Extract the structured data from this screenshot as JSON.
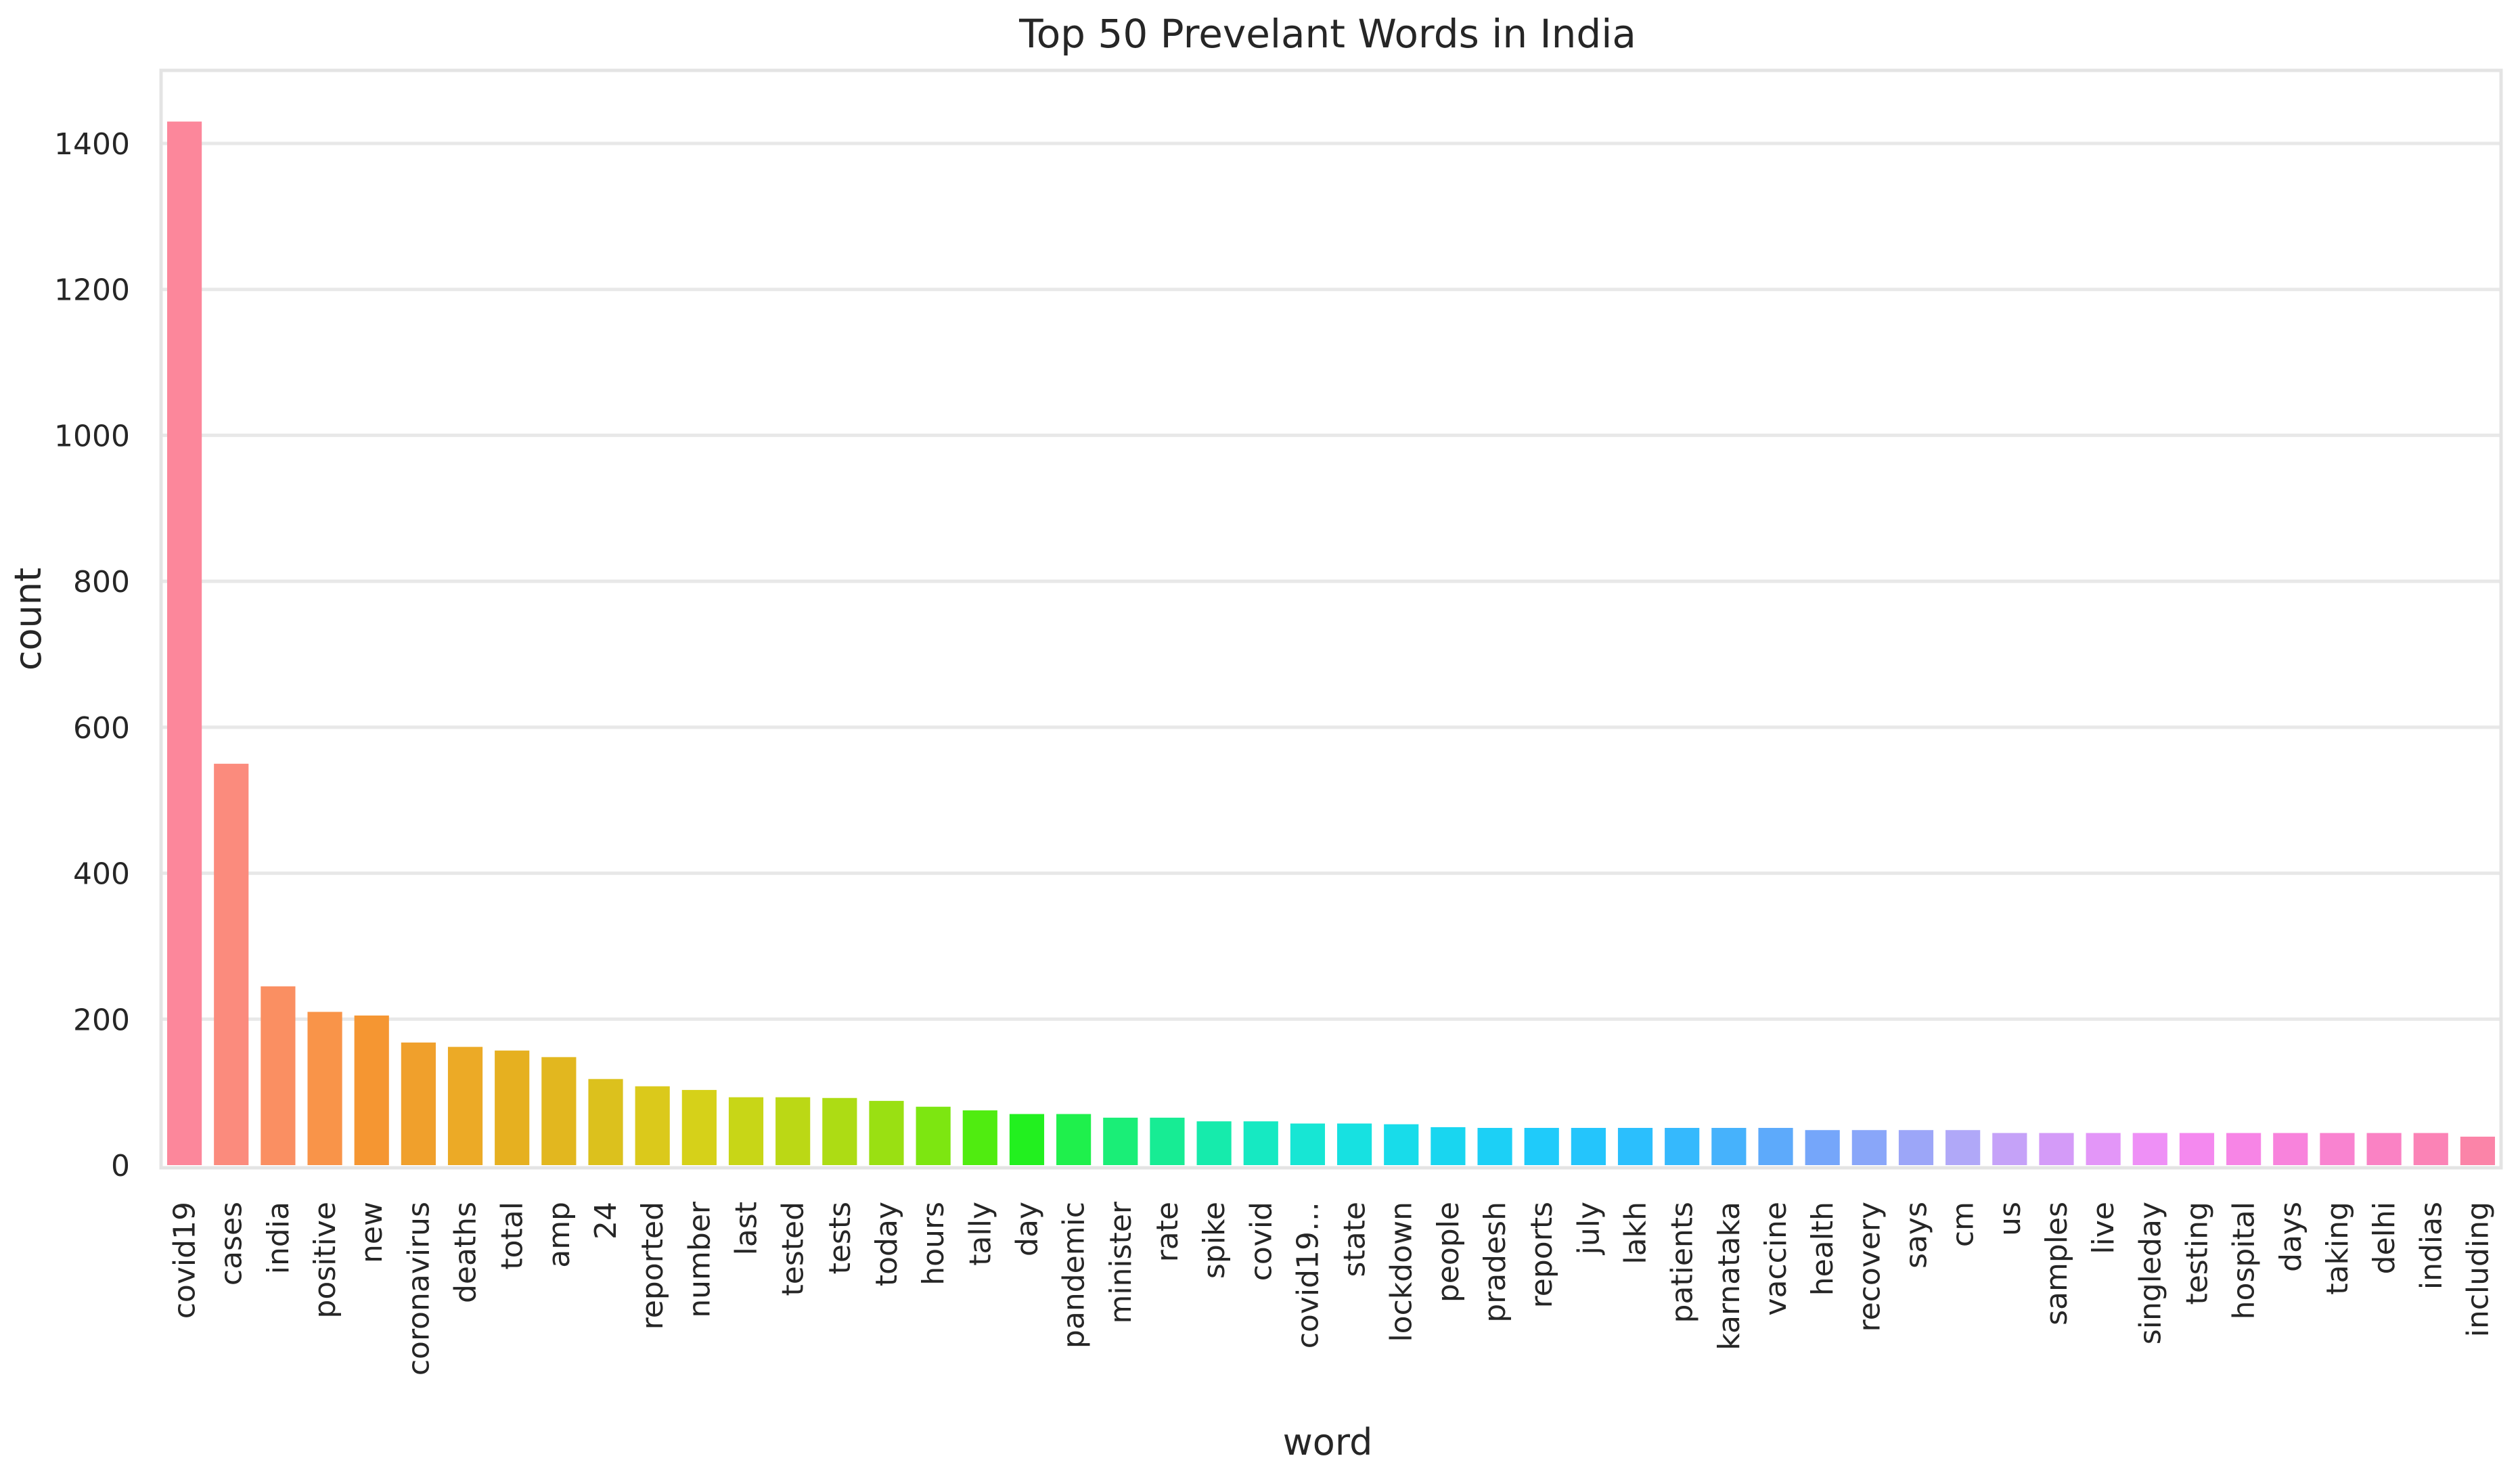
{
  "chart_data": {
    "type": "bar",
    "title": "Top 50 Prevelant Words in India",
    "xlabel": "word",
    "ylabel": "count",
    "ylim": [
      0,
      1500
    ],
    "yticks": [
      0,
      200,
      400,
      600,
      800,
      1000,
      1200,
      1400
    ],
    "grid": true,
    "categories": [
      "covid19",
      "cases",
      "india",
      "positive",
      "new",
      "coronavirus",
      "deaths",
      "total",
      "amp",
      "24",
      "reported",
      "number",
      "last",
      "tested",
      "tests",
      "today",
      "hours",
      "tally",
      "day",
      "pandemic",
      "minister",
      "rate",
      "spike",
      "covid",
      "covid19…",
      "state",
      "lockdown",
      "people",
      "pradesh",
      "reports",
      "july",
      "lakh",
      "patients",
      "karnataka",
      "vaccine",
      "health",
      "recovery",
      "says",
      "cm",
      "us",
      "samples",
      "live",
      "singleday",
      "testing",
      "hospital",
      "days",
      "taking",
      "delhi",
      "indias",
      "including"
    ],
    "values": [
      1430,
      550,
      245,
      210,
      205,
      168,
      162,
      157,
      148,
      118,
      108,
      103,
      93,
      93,
      92,
      88,
      80,
      75,
      70,
      70,
      65,
      65,
      60,
      60,
      57,
      57,
      56,
      52,
      51,
      51,
      51,
      51,
      51,
      51,
      51,
      48,
      48,
      48,
      48,
      44,
      44,
      44,
      44,
      44,
      44,
      44,
      44,
      44,
      44,
      39
    ],
    "colors": [
      "#fc879b",
      "#fb8b7d",
      "#fa8f62",
      "#f99449",
      "#f59632",
      "#f0a02c",
      "#ecaa26",
      "#e6b020",
      "#e2b71f",
      "#dcc11d",
      "#dbc91b",
      "#d6d119",
      "#c8d617",
      "#bbd815",
      "#addc14",
      "#9ae012",
      "#7de611",
      "#50ec10",
      "#22f01f",
      "#1ff04c",
      "#1aee77",
      "#17ec94",
      "#16ebac",
      "#16e9c2",
      "#17e6d4",
      "#17e1e1",
      "#18dcea",
      "#19d6f0",
      "#1cd0f6",
      "#1fcbfa",
      "#24c5fc",
      "#2bbffd",
      "#35b9fd",
      "#46b2fc",
      "#5daafb",
      "#75a6fa",
      "#89a6f9",
      "#9ca6f8",
      "#b0a8f8",
      "#c5a2f8",
      "#d49bf8",
      "#e396f8",
      "#ee90f6",
      "#f489ef",
      "#f785e6",
      "#f883dc",
      "#f983d0",
      "#fa82c4",
      "#fb83b6",
      "#fb84a8"
    ]
  }
}
